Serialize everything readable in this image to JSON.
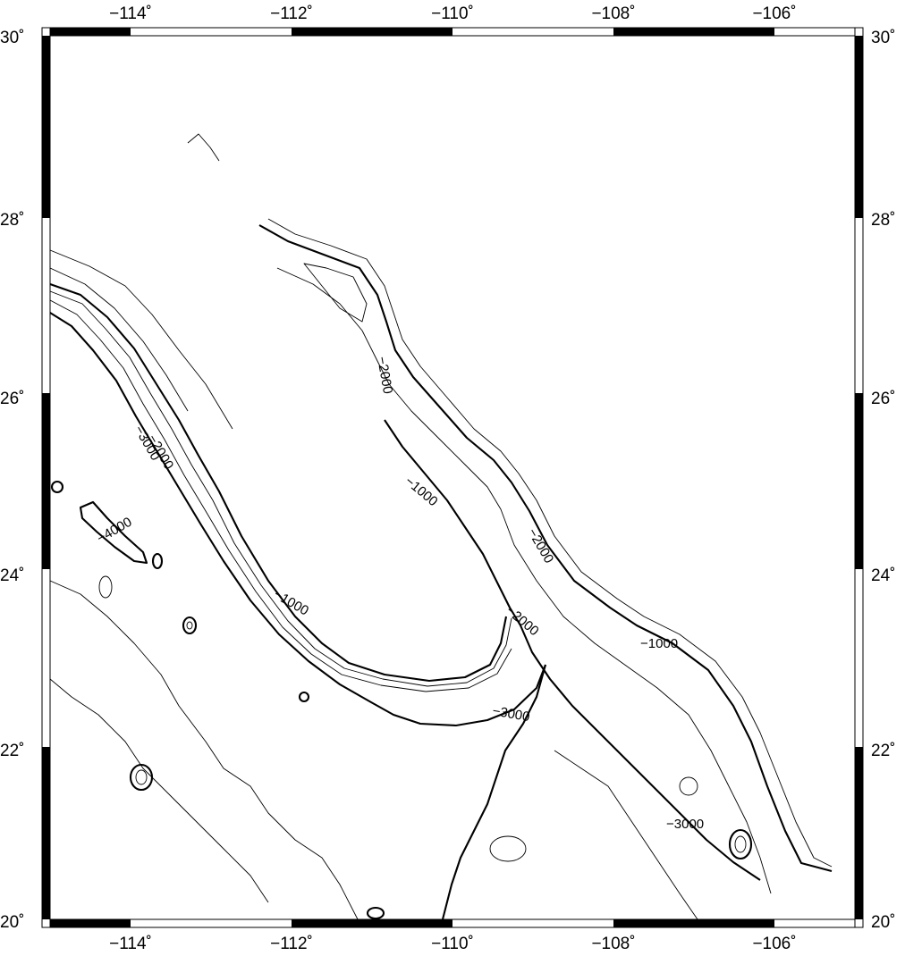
{
  "map": {
    "x_ticks": [
      "−114˚",
      "−112˚",
      "−110˚",
      "−108˚",
      "−106˚"
    ],
    "y_ticks": [
      "30˚",
      "28˚",
      "26˚",
      "24˚",
      "22˚",
      "20˚"
    ],
    "contour_labels": [
      "−1000",
      "−2000",
      "−3000",
      "−4000",
      "−1000",
      "−2000",
      "−3000",
      "−2000",
      "−2000",
      "−1000",
      "−3000"
    ],
    "line_color": "#000000",
    "background": "#ffffff"
  }
}
